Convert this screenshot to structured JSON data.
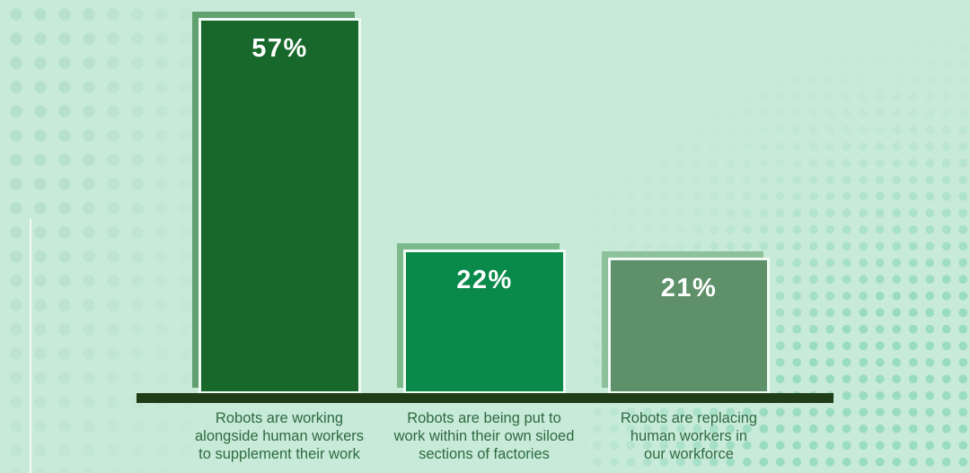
{
  "chart_data": {
    "type": "bar",
    "categories": [
      "Robots are working alongside human workers to supplement their work",
      "Robots are being put to work within their own siloed sections of factories",
      "Robots are replacing human workers in our workforce"
    ],
    "values": [
      57,
      22,
      21
    ],
    "title": "",
    "xlabel": "",
    "ylabel": "",
    "ylim": [
      0,
      60
    ],
    "grid": false,
    "legend": false,
    "bars": [
      {
        "value": 57,
        "value_label": "57%",
        "label": "Robots are working\nalongside human workers\nto supplement their work",
        "fill": "#17682a",
        "shadow": "#61a170"
      },
      {
        "value": 22,
        "value_label": "22%",
        "label": "Robots are being put to\nwork within their own siloed\nsections of factories",
        "fill": "#0a8a4a",
        "shadow": "#7cb98c"
      },
      {
        "value": 21,
        "value_label": "21%",
        "label": "Robots are replacing\nhuman workers in\nour workforce",
        "fill": "#5e9069",
        "shadow": "#8dc19b"
      }
    ]
  },
  "colors": {
    "background": "#c8ead8",
    "axis": "#1f3d17",
    "bar_border": "#f0faf4",
    "value_text": "#ffffff",
    "category_text": "#2e6b41",
    "dots_left": "#b5e0ca",
    "dots_right": "#99dcc0",
    "accent_line": "#ffffff"
  }
}
